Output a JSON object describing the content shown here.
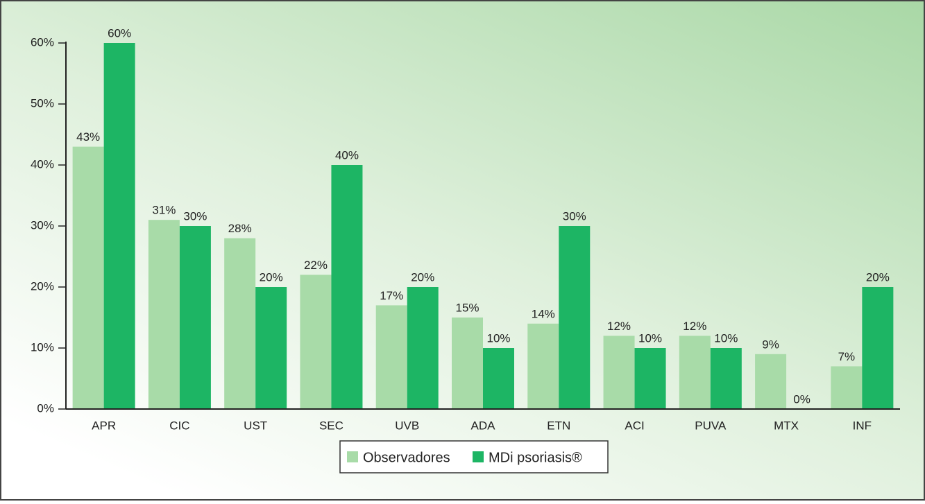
{
  "chart_data": {
    "type": "bar",
    "categories": [
      "APR",
      "CIC",
      "UST",
      "SEC",
      "UVB",
      "ADA",
      "ETN",
      "ACI",
      "PUVA",
      "MTX",
      "INF"
    ],
    "series": [
      {
        "name": "Observadores",
        "color": "#a8dba8",
        "values": [
          43,
          31,
          28,
          22,
          17,
          15,
          14,
          12,
          12,
          9,
          7
        ],
        "value_labels": [
          "43%",
          "31%",
          "28%",
          "22%",
          "17%",
          "15%",
          "14%",
          "12%",
          "12%",
          "9%",
          "7%"
        ]
      },
      {
        "name": "MDi psoriasis®",
        "color": "#1db564",
        "values": [
          60,
          30,
          20,
          40,
          20,
          10,
          30,
          10,
          10,
          0,
          20
        ],
        "value_labels": [
          "60%",
          "30%",
          "20%",
          "40%",
          "20%",
          "10%",
          "30%",
          "10%",
          "10%",
          "0%",
          "20%"
        ]
      }
    ],
    "ylim": [
      0,
      60
    ],
    "yticks": [
      {
        "value": 0,
        "label": "0%"
      },
      {
        "value": 10,
        "label": "10%"
      },
      {
        "value": 20,
        "label": "20%"
      },
      {
        "value": 30,
        "label": "30%"
      },
      {
        "value": 40,
        "label": "40%"
      },
      {
        "value": 50,
        "label": "50%"
      },
      {
        "value": 60,
        "label": "60%"
      }
    ]
  }
}
